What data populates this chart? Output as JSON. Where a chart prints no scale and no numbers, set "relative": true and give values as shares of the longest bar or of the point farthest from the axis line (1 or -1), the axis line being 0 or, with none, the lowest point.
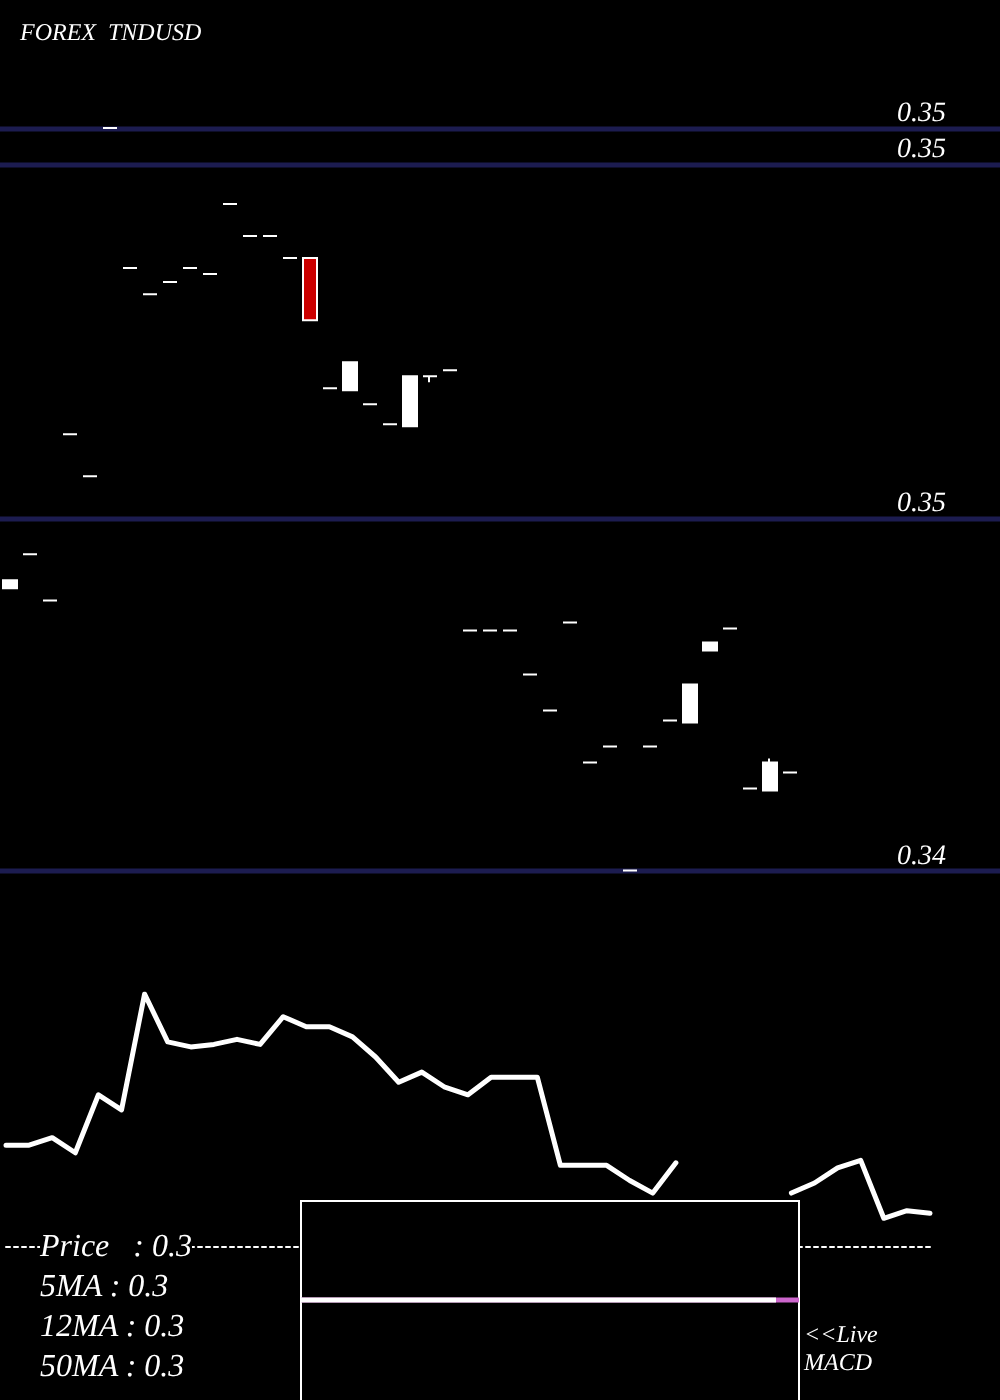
{
  "chart_data": [
    {
      "type": "candlestick",
      "title": "FOREX  TNDUSD",
      "categories": [
        null,
        null,
        null,
        null,
        null,
        null,
        null,
        null,
        null,
        null,
        null,
        null,
        null,
        null,
        null,
        null,
        null,
        null,
        null,
        null,
        null,
        null,
        null,
        null,
        null,
        null,
        null,
        null,
        null,
        null,
        null,
        null,
        null,
        null,
        null,
        null,
        null,
        null,
        null,
        null
      ],
      "ohlc": [
        [
          0.34541,
          0.34545,
          0.34541,
          0.34545
        ],
        [
          0.34558,
          0.34558,
          0.34558,
          0.34558
        ],
        [
          0.34535,
          0.34535,
          0.34535,
          0.34535
        ],
        [
          0.34618,
          0.34618,
          0.34618,
          0.34618
        ],
        [
          0.34597,
          0.34597,
          0.34597,
          0.34597
        ],
        [
          0.34771,
          0.34771,
          0.34771,
          0.34771
        ],
        [
          0.34701,
          0.34701,
          0.34701,
          0.34701
        ],
        [
          0.34688,
          0.34688,
          0.34688,
          0.34688
        ],
        [
          0.34694,
          0.34694,
          0.34694,
          0.34694
        ],
        [
          0.34701,
          0.34701,
          0.34701,
          0.34701
        ],
        [
          0.34698,
          0.34698,
          0.34698,
          0.34698
        ],
        [
          0.34733,
          0.34733,
          0.34733,
          0.34733
        ],
        [
          0.34717,
          0.34717,
          0.34717,
          0.34717
        ],
        [
          0.34717,
          0.34717,
          0.34717,
          0.34717
        ],
        [
          0.34706,
          0.34706,
          0.34706,
          0.34706
        ],
        [
          0.34706,
          0.34706,
          0.34675,
          0.34675
        ],
        [
          0.34641,
          0.34641,
          0.34641,
          0.34641
        ],
        [
          0.3464,
          0.34654,
          0.3464,
          0.34654
        ],
        [
          0.34633,
          0.34633,
          0.34633,
          0.34633
        ],
        [
          0.34623,
          0.34623,
          0.34623,
          0.34623
        ],
        [
          0.34622,
          0.34647,
          0.34622,
          0.34647
        ],
        [
          0.34647,
          0.34647,
          0.34644,
          0.34647
        ],
        [
          0.3465,
          0.3465,
          0.3465,
          0.3465
        ],
        [
          0.3452,
          0.3452,
          0.3452,
          0.3452
        ],
        [
          0.3452,
          0.3452,
          0.3452,
          0.3452
        ],
        [
          0.3452,
          0.3452,
          0.3452,
          0.3452
        ],
        [
          0.34498,
          0.34498,
          0.34498,
          0.34498
        ],
        [
          0.3448,
          0.3448,
          0.3448,
          0.3448
        ],
        [
          0.34524,
          0.34524,
          0.34524,
          0.34524
        ],
        [
          0.34454,
          0.34454,
          0.34454,
          0.34454
        ],
        [
          0.34462,
          0.34462,
          0.34462,
          0.34462
        ],
        [
          0.344,
          0.344,
          0.344,
          0.344
        ],
        [
          0.34462,
          0.34462,
          0.34462,
          0.34462
        ],
        [
          0.34475,
          0.34475,
          0.34475,
          0.34475
        ],
        [
          0.34474,
          0.34493,
          0.34474,
          0.34493
        ],
        [
          0.3451,
          0.34514,
          0.3451,
          0.34514
        ],
        [
          0.34521,
          0.34521,
          0.34521,
          0.34521
        ],
        [
          0.34441,
          0.34441,
          0.34441,
          0.34441
        ],
        [
          0.3444,
          0.34456,
          0.3444,
          0.34454
        ],
        [
          0.34449,
          0.34449,
          0.34449,
          0.34449
        ]
      ],
      "colors": [
        "#ffffff",
        "#ffffff",
        "#ffffff",
        "#ffffff",
        "#ffffff",
        "#ffffff",
        "#ffffff",
        "#ffffff",
        "#ffffff",
        "#ffffff",
        "#ffffff",
        "#ffffff",
        "#ffffff",
        "#ffffff",
        "#ffffff",
        "#cc0000",
        "#ffffff",
        "#ffffff",
        "#ffffff",
        "#ffffff",
        "#ffffff",
        "#ffffff",
        "#ffffff",
        "#ffffff",
        "#ffffff",
        "#ffffff",
        "#ffffff",
        "#ffffff",
        "#ffffff",
        "#ffffff",
        "#ffffff",
        "#ffffff",
        "#ffffff",
        "#ffffff",
        "#ffffff",
        "#ffffff",
        "#ffffff",
        "#ffffff",
        "#ffffff",
        "#ffffff"
      ],
      "ylim": [
        0.344,
        0.34771
      ],
      "yticks": [
        {
          "value": 0.344,
          "label": "0.34"
        },
        {
          "value": 0.34576,
          "label": "0.35"
        },
        {
          "value": 0.34753,
          "label": "0.35"
        },
        {
          "value": 0.34771,
          "label": "0.35"
        }
      ],
      "grid": "y"
    },
    {
      "type": "line",
      "relative": true,
      "categories": [
        null,
        null,
        null,
        null,
        null,
        null,
        null,
        null,
        null,
        null,
        null,
        null,
        null,
        null,
        null,
        null,
        null,
        null,
        null,
        null,
        null,
        null,
        null,
        null,
        null,
        null,
        null,
        null,
        null,
        null,
        null,
        null,
        null,
        null,
        null,
        null,
        null,
        null,
        null,
        null,
        null
      ],
      "series": [
        {
          "color": "#ffffff",
          "values": [
            0.4,
            0.4,
            0.43,
            0.37,
            0.6,
            0.54,
            1,
            0.81,
            0.79,
            0.8,
            0.82,
            0.8,
            0.91,
            0.87,
            0.87,
            0.83,
            0.75,
            0.65,
            0.69,
            0.63,
            0.6,
            0.67,
            0.67,
            0.67,
            0.32,
            0.32,
            0.32,
            0.26,
            0.21,
            0.33,
            null,
            null,
            null,
            null,
            0.21,
            0.25,
            0.31,
            0.34,
            0.11,
            0.14,
            0.13
          ]
        }
      ],
      "annotations": [
        "Price   : 0.3",
        "5MA : 0.3",
        "12MA : 0.3",
        "50MA : 0.3"
      ]
    },
    {
      "type": "other",
      "annotations": [
        "<<Live MACD"
      ]
    }
  ]
}
